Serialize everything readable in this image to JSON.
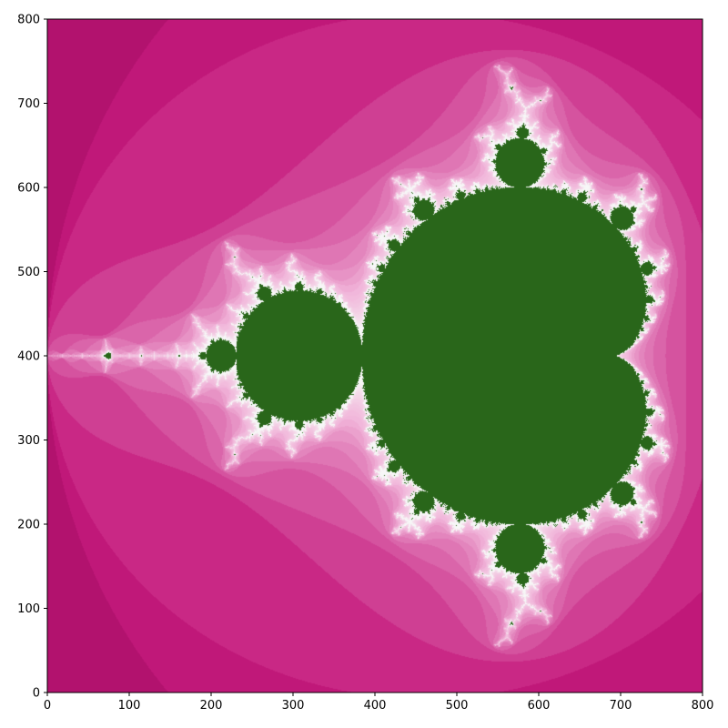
{
  "chart_data": {
    "type": "heatmap",
    "title": "",
    "xlabel": "",
    "ylabel": "",
    "xlim": [
      0,
      800
    ],
    "ylim": [
      0,
      800
    ],
    "x_ticks": [
      "0",
      "100",
      "200",
      "300",
      "400",
      "500",
      "600",
      "700",
      "800"
    ],
    "y_ticks": [
      "0",
      "100",
      "200",
      "300",
      "400",
      "500",
      "600",
      "700",
      "800"
    ],
    "grid": false,
    "legend": "none",
    "content": "Mandelbrot set escape-time image on an 800 x 800 pixel grid",
    "colors": {
      "inside_set": "#29661a",
      "far_background": "#8e0152",
      "near_boundary": "#c51b7d",
      "boundary_light": "#f1b6da",
      "boundary_edge": "#f7f7f7"
    }
  }
}
